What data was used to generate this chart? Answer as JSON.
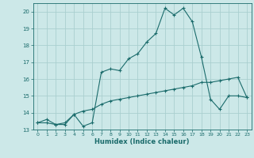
{
  "xlabel": "Humidex (Indice chaleur)",
  "ylabel": "",
  "bg_color": "#cce8e8",
  "grid_color": "#aacfcf",
  "line_color": "#1a6b6b",
  "xlim": [
    -0.5,
    23.5
  ],
  "ylim": [
    13,
    20.5
  ],
  "yticks": [
    13,
    14,
    15,
    16,
    17,
    18,
    19,
    20
  ],
  "xticks": [
    0,
    1,
    2,
    3,
    4,
    5,
    6,
    7,
    8,
    9,
    10,
    11,
    12,
    13,
    14,
    15,
    16,
    17,
    18,
    19,
    20,
    21,
    22,
    23
  ],
  "line1_x": [
    0,
    1,
    2,
    3,
    4,
    5,
    6,
    7,
    8,
    9,
    10,
    11,
    12,
    13,
    14,
    15,
    16,
    17,
    18,
    19,
    20,
    21,
    22,
    23
  ],
  "line1_y": [
    13.4,
    13.6,
    13.3,
    13.3,
    13.9,
    13.2,
    13.4,
    16.4,
    16.6,
    16.5,
    17.2,
    17.5,
    18.2,
    18.7,
    20.2,
    19.8,
    20.2,
    19.4,
    17.3,
    14.8,
    14.2,
    15.0,
    15.0,
    14.9
  ],
  "line2_x": [
    0,
    1,
    2,
    3,
    4,
    5,
    6,
    7,
    8,
    9,
    10,
    11,
    12,
    13,
    14,
    15,
    16,
    17,
    18,
    19,
    20,
    21,
    22,
    23
  ],
  "line2_y": [
    13.4,
    13.4,
    13.3,
    13.4,
    13.9,
    14.1,
    14.2,
    14.5,
    14.7,
    14.8,
    14.9,
    15.0,
    15.1,
    15.2,
    15.3,
    15.4,
    15.5,
    15.6,
    15.8,
    15.8,
    15.9,
    16.0,
    16.1,
    14.9
  ]
}
